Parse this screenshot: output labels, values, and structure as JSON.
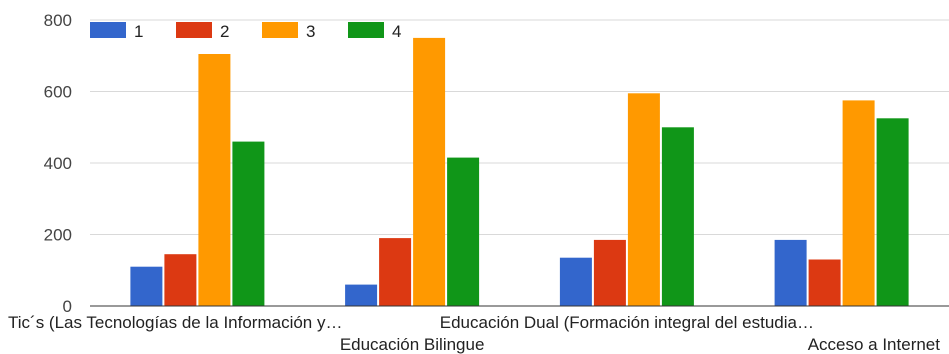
{
  "chart_data": {
    "type": "bar",
    "categories": [
      "Tic´s (Las Tecnologías de la Información y…",
      "Educación Bilingue",
      "Educación Dual (Formación integral del estudia…",
      "Acceso a Internet"
    ],
    "series": [
      {
        "name": "1",
        "color": "#3366cc",
        "values": [
          110,
          60,
          135,
          185
        ]
      },
      {
        "name": "2",
        "color": "#dc3912",
        "values": [
          145,
          190,
          185,
          130
        ]
      },
      {
        "name": "3",
        "color": "#ff9900",
        "values": [
          705,
          750,
          595,
          575
        ]
      },
      {
        "name": "4",
        "color": "#109618",
        "values": [
          460,
          415,
          500,
          525
        ]
      }
    ],
    "yticks": [
      0,
      200,
      400,
      600,
      800
    ],
    "ylim": [
      0,
      800
    ],
    "grid": true,
    "legend_position": "top-left"
  }
}
